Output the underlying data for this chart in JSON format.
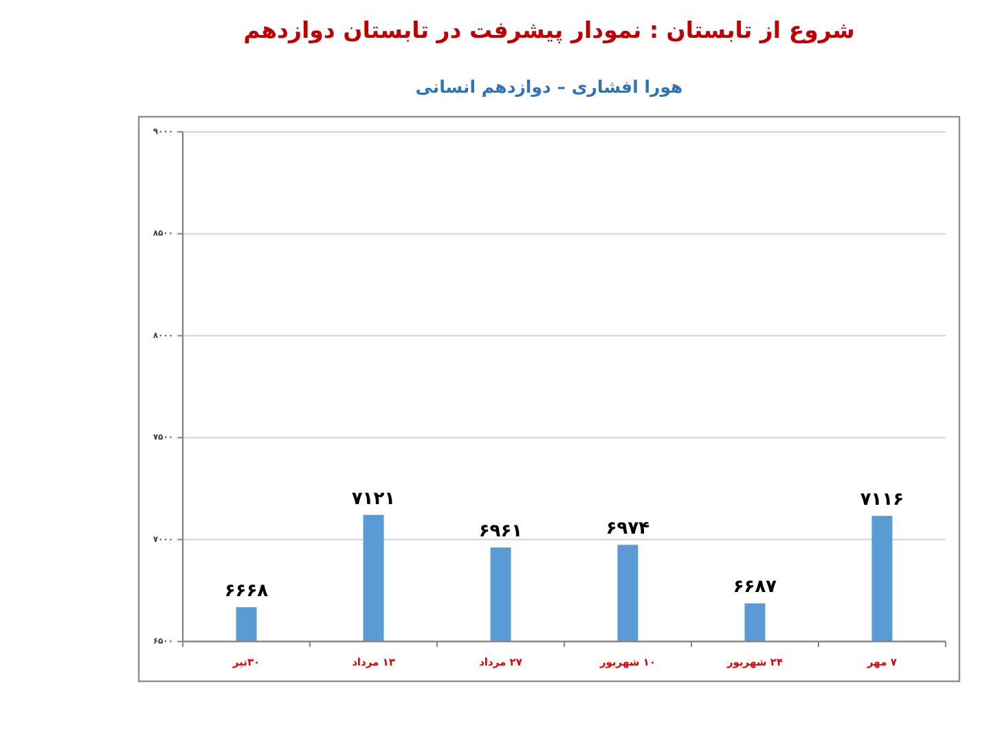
{
  "chart_data": {
    "type": "bar",
    "title": "شروع از تابستان : نمودار پیشرفت در تابستان دوازدهم",
    "subtitle": "هورا افشاری – دوازدهم انسانی",
    "categories": [
      "۳۰تیر",
      "۱۳ مرداد",
      "۲۷ مرداد",
      "۱۰ شهریور",
      "۲۴ شهریور",
      "۷ مهر"
    ],
    "values": [
      6668,
      7121,
      6961,
      6974,
      6687,
      7116
    ],
    "value_labels": [
      "۶۶۶۸",
      "۷۱۲۱",
      "۶۹۶۱",
      "۶۹۷۴",
      "۶۶۸۷",
      "۷۱۱۶"
    ],
    "color": "#5B9BD5",
    "ylim": [
      6500,
      9000
    ],
    "yticks": [
      {
        "value": 6500,
        "label": "۶۵۰۰"
      },
      {
        "value": 7000,
        "label": "۷۰۰۰"
      },
      {
        "value": 7500,
        "label": "۷۵۰۰"
      },
      {
        "value": 8000,
        "label": "۸۰۰۰"
      },
      {
        "value": 8500,
        "label": "۸۵۰۰"
      },
      {
        "value": 9000,
        "label": "۹۰۰۰"
      }
    ],
    "grid": "y"
  }
}
